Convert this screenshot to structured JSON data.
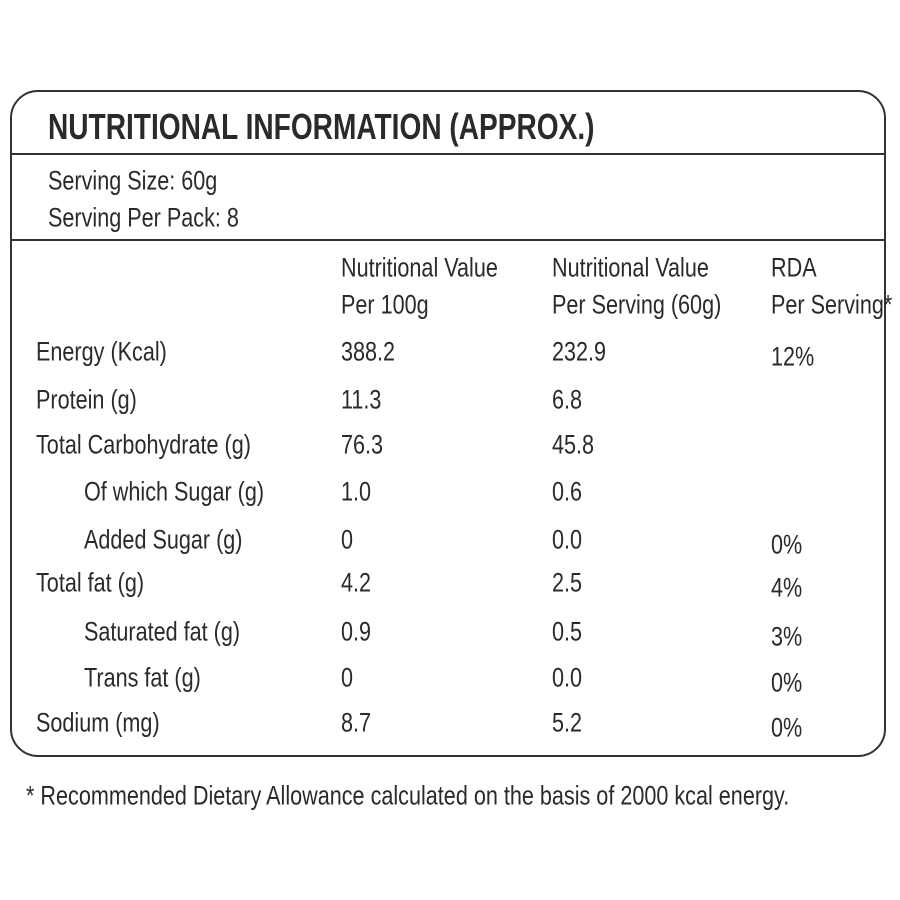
{
  "header": {
    "title": "NUTRITIONAL INFORMATION (APPROX.)",
    "serving_size": "Serving Size: 60g",
    "servings_per_pack": "Serving Per Pack: 8"
  },
  "table": {
    "columns": [
      [
        "Nutritional Value",
        "Per 100g"
      ],
      [
        "Nutritional Value",
        "Per Serving (60g)"
      ],
      [
        "RDA",
        "Per Serving*"
      ]
    ],
    "rows": [
      [
        "Energy (Kcal)",
        "388.2",
        "232.9",
        "12%"
      ],
      [
        "Protein (g)",
        "11.3",
        "6.8"
      ],
      [
        "Total Carbohydrate (g)",
        "76.3",
        "45.8"
      ],
      [
        "Of which Sugar (g)",
        "1.0",
        "0.6"
      ],
      [
        "Added Sugar (g)",
        "0",
        "0.0",
        "0%"
      ],
      [
        "Total fat (g)",
        "4.2",
        "2.5",
        "4%"
      ],
      [
        "Saturated fat (g)",
        "0.9",
        "0.5",
        "3%"
      ],
      [
        "Trans fat (g)",
        "0",
        "0.0",
        "0%"
      ],
      [
        "Sodium (mg)",
        "8.7",
        "5.2",
        "0%"
      ]
    ]
  },
  "footnote": "* Recommended Dietary Allowance calculated on the basis of 2000 kcal energy."
}
